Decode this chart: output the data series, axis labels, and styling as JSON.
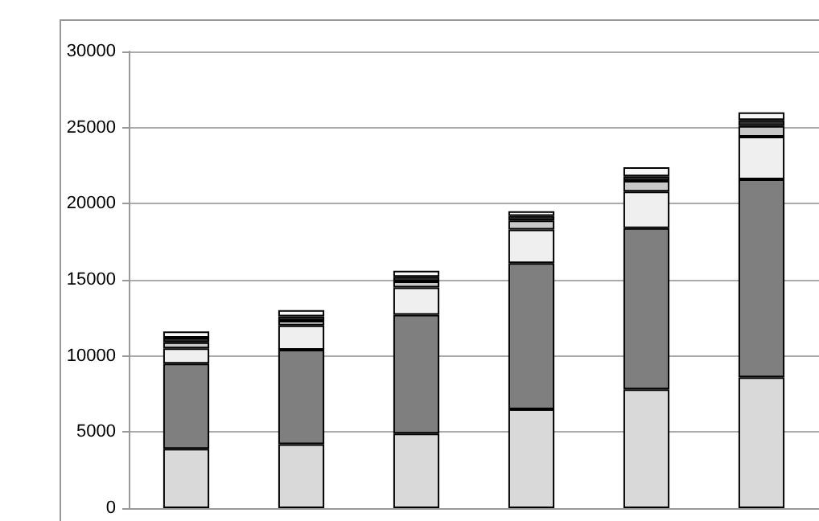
{
  "chart_data": {
    "type": "bar",
    "stacked": true,
    "categories": [
      null,
      null,
      null,
      null,
      null,
      null
    ],
    "series": [
      {
        "color": "#d9d9d9",
        "values": [
          3900,
          4200,
          4900,
          6500,
          7800,
          8600
        ]
      },
      {
        "color": "#7f7f7f",
        "values": [
          5600,
          6200,
          7800,
          9600,
          10600,
          13000
        ]
      },
      {
        "color": "#efefef",
        "values": [
          1000,
          1600,
          1800,
          2200,
          2400,
          2800
        ]
      },
      {
        "color": "#c8c8c8",
        "values": [
          400,
          300,
          400,
          600,
          700,
          700
        ]
      },
      {
        "color": "#303030",
        "values": [
          300,
          300,
          300,
          300,
          300,
          400
        ]
      },
      {
        "color": "#f7f7f7",
        "values": [
          400,
          400,
          400,
          300,
          600,
          500
        ]
      }
    ],
    "ylim": [
      0,
      30000
    ],
    "yticks": [
      0,
      5000,
      10000,
      15000,
      20000,
      25000,
      30000
    ],
    "grid": "y"
  }
}
